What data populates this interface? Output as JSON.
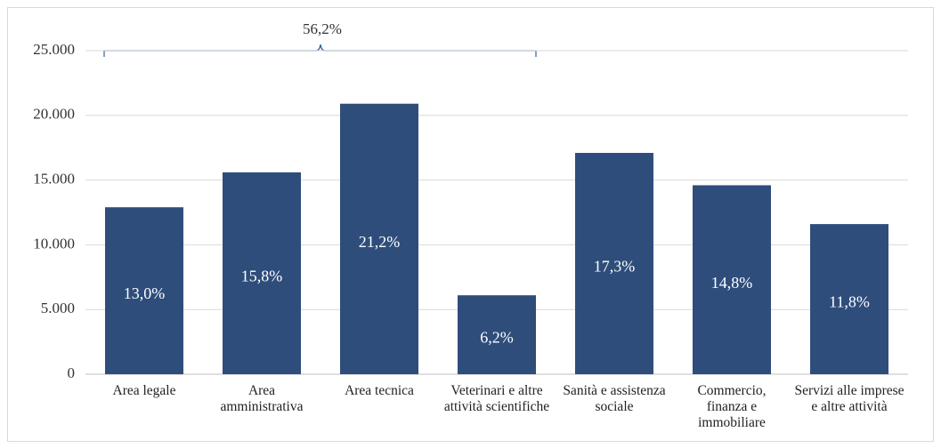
{
  "chart_data": {
    "type": "bar",
    "categories": [
      "Area legale",
      "Area amministrativa",
      "Area tecnica",
      "Veterinari e altre attività scientifiche",
      "Sanità e assistenza sociale",
      "Commercio, finanza e immobiliare",
      "Servizi alle imprese e altre attività"
    ],
    "values": [
      12900,
      15600,
      20900,
      6100,
      17100,
      14600,
      11600
    ],
    "share_labels": [
      "13,0%",
      "15,8%",
      "21,2%",
      "6,2%",
      "17,3%",
      "14,8%",
      "11,8%"
    ],
    "bracket_label": "56,2%",
    "color": "#2e4d7b",
    "ylim": [
      0,
      25000
    ],
    "yticks": [
      0,
      {
        "value": 5000,
        "label": "5.000"
      },
      {
        "value": 10000,
        "label": "10.000"
      },
      {
        "value": 15000,
        "label": "15.000"
      },
      {
        "value": 20000,
        "label": "20.000"
      },
      {
        "value": 25000,
        "label": "25.000"
      }
    ],
    "grid": true
  }
}
